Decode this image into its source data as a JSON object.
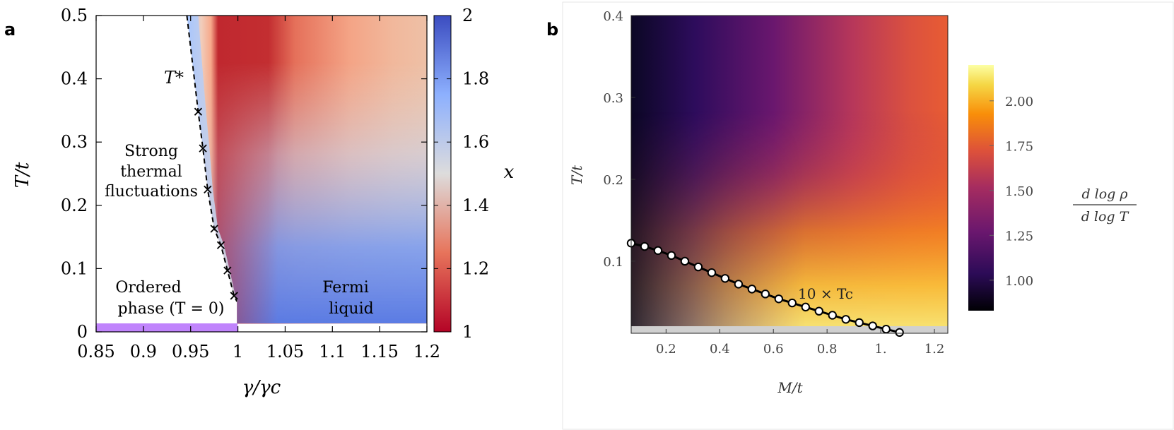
{
  "panels": {
    "a": {
      "letter": "a",
      "x_ticks": [
        "0.85",
        "0.9",
        "0.95",
        "1",
        "1.05",
        "1.1",
        "1.15",
        "1.2"
      ],
      "y_ticks": [
        "0",
        "0.1",
        "0.2",
        "0.3",
        "0.4",
        "0.5"
      ],
      "xlabel": "γ/γc",
      "ylabel": "T/t",
      "colorbar_label": "x",
      "colorbar_ticks": [
        "1",
        "1.2",
        "1.4",
        "1.6",
        "1.8",
        "2"
      ],
      "annotations": {
        "tstar": "T*",
        "strong_1": "Strong",
        "strong_2": "thermal",
        "strong_3": "fluctuations",
        "ordered_1": "Ordered",
        "ordered_2": "phase (T = 0)",
        "fermi_1": "Fermi",
        "fermi_2": "liquid"
      }
    },
    "b": {
      "letter": "b",
      "x_ticks": [
        "0.2",
        "0.4",
        "0.6",
        "0.8",
        "1.",
        "1.2"
      ],
      "y_ticks": [
        "0.1",
        "0.2",
        "0.3",
        "0.4"
      ],
      "xlabel": "M/t",
      "ylabel": "T/t",
      "colorbar_label_num": "d log ρ",
      "colorbar_label_den": "d log T",
      "colorbar_ticks": [
        "1.00",
        "1.25",
        "1.50",
        "1.75",
        "2.00"
      ],
      "curve_label": "10 × Tc"
    }
  },
  "colors": {
    "coolwarm_low": "#b40426",
    "coolwarm_mid": "#dddddd",
    "coolwarm_high": "#3b4cc0",
    "ordered_bar": "#c084fc",
    "grey_band": "#d0d0d0"
  },
  "chart_data": [
    {
      "panel": "a",
      "type": "heatmap",
      "xlabel": "γ/γc",
      "ylabel": "T/t",
      "xlim": [
        0.85,
        1.2
      ],
      "ylim": [
        0,
        0.5
      ],
      "colorbar": {
        "label": "x",
        "range": [
          1,
          2
        ],
        "colormap": "coolwarm"
      },
      "series": [
        {
          "type": "scatter",
          "marker": "x",
          "x": [
            0.958,
            0.963,
            0.968,
            0.975,
            0.982,
            0.989,
            0.996
          ],
          "y": [
            0.348,
            0.29,
            0.225,
            0.163,
            0.137,
            0.097,
            0.057
          ]
        },
        {
          "type": "line",
          "style": "dashed",
          "x": [
            0.946,
            0.958,
            0.963,
            0.968,
            0.975,
            0.982,
            0.989,
            0.996,
            0.999
          ],
          "y": [
            0.5,
            0.348,
            0.29,
            0.225,
            0.163,
            0.137,
            0.097,
            0.057,
            0.048
          ]
        }
      ]
    },
    {
      "panel": "b",
      "type": "heatmap",
      "xlabel": "M/t",
      "ylabel": "T/t",
      "xlim": [
        0.07,
        1.25
      ],
      "ylim": [
        0.012,
        0.4
      ],
      "colorbar": {
        "label": "d log ρ / d log T",
        "range": [
          0.83,
          2.2
        ],
        "colormap": "inferno"
      },
      "series": [
        {
          "type": "line",
          "marker": "o",
          "x": [
            0.07,
            0.12,
            0.17,
            0.22,
            0.27,
            0.32,
            0.37,
            0.42,
            0.47,
            0.52,
            0.57,
            0.62,
            0.67,
            0.72,
            0.77,
            0.82,
            0.87,
            0.92,
            0.97,
            1.02,
            1.07
          ],
          "y": [
            0.122,
            0.118,
            0.113,
            0.107,
            0.1,
            0.093,
            0.086,
            0.079,
            0.072,
            0.066,
            0.06,
            0.054,
            0.049,
            0.044,
            0.039,
            0.034,
            0.029,
            0.025,
            0.021,
            0.017,
            0.013
          ]
        }
      ]
    }
  ]
}
